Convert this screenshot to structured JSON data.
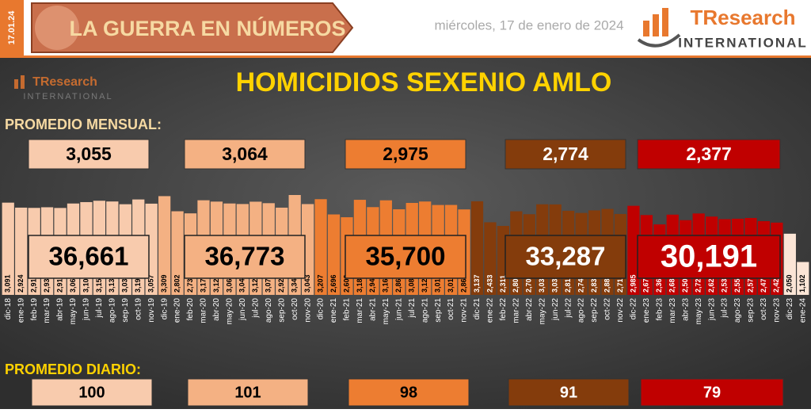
{
  "header": {
    "date_tag": "17.01.24",
    "banner": "LA GUERRA EN NÚMEROS",
    "date": "miércoles, 17 de enero de 2024",
    "logo_name": "TResearch",
    "logo_sub": "INTERNATIONAL"
  },
  "chart_data": {
    "type": "bar",
    "title": "HOMICIDIOS SEXENIO AMLO",
    "x": [
      "dic-18",
      "ene-19",
      "feb-19",
      "mar-19",
      "abr-19",
      "may-19",
      "jun-19",
      "jul-19",
      "ago-19",
      "sep-19",
      "oct-19",
      "nov-19",
      "dic-19",
      "ene-20",
      "feb-20",
      "mar-20",
      "abr-20",
      "may-20",
      "jun-20",
      "jul-20",
      "ago-20",
      "sep-20",
      "oct-20",
      "nov-20",
      "dic-20",
      "ene-21",
      "feb-21",
      "mar-21",
      "abr-21",
      "may-21",
      "jun-21",
      "jul-21",
      "ago-21",
      "sep-21",
      "oct-21",
      "nov-21",
      "dic-21",
      "ene-22",
      "feb-22",
      "mar-22",
      "abr-22",
      "may-22",
      "jun-22",
      "jul-22",
      "ago-22",
      "sep-22",
      "oct-22",
      "nov-22",
      "dic-22",
      "ene-23",
      "feb-23",
      "mar-23",
      "abr-23",
      "may-23",
      "jun-23",
      "jul-23",
      "ago-23",
      "sep-23",
      "oct-23",
      "nov-23",
      "dic-23",
      "ene-24"
    ],
    "values": [
      3091,
      2924,
      2915,
      2936,
      2913,
      3062,
      3109,
      3155,
      3130,
      3038,
      3198,
      3057,
      3309,
      2802,
      2732,
      3171,
      3126,
      3063,
      3045,
      3123,
      3073,
      2923,
      3347,
      3043,
      3207,
      2696,
      2602,
      3186,
      2941,
      3169,
      2868,
      3082,
      3129,
      3012,
      3014,
      2864,
      3137,
      2433,
      2311,
      2801,
      2703,
      3036,
      3032,
      2818,
      2746,
      2831,
      2880,
      2711,
      2985,
      2675,
      2362,
      2689,
      2504,
      2728,
      2624,
      2538,
      2552,
      2577,
      2470,
      2422,
      2050,
      1102
    ],
    "value_labels": [
      "3,091",
      "2,924",
      "2,915",
      "2,936",
      "2,913",
      "3,062",
      "3,109",
      "3,155",
      "3,130",
      "3,038",
      "3,198",
      "3,057",
      "3,309",
      "2,802",
      "2,732",
      "3,171",
      "3,126",
      "3,063",
      "3,045",
      "3,123",
      "3,073",
      "2,923",
      "3,347",
      "3,043",
      "3,207",
      "2,696",
      "2,602",
      "3,186",
      "2,941",
      "3,169",
      "2,868",
      "3,082",
      "3,129",
      "3,012",
      "3,014",
      "2,864",
      "3,137",
      "2,433",
      "2,311",
      "2,801",
      "2,703",
      "3,036",
      "3,032",
      "2,818",
      "2,746",
      "2,831",
      "2,880",
      "2,711",
      "2,985",
      "2,675",
      "2,362",
      "2,689",
      "2,504",
      "2,728",
      "2,624",
      "2,538",
      "2,552",
      "2,577",
      "2,470",
      "2,422",
      "2,050",
      "1,102"
    ],
    "colors": [
      "#f8cbad",
      "#f4b183",
      "#ed7d31",
      "#843c0c",
      "#c00000",
      "#fbe5d6"
    ],
    "period_totals": {
      "values": [
        36661,
        36773,
        35700,
        33287,
        30191
      ],
      "value_labels": [
        "36,661",
        "36,773",
        "35,700",
        "33,287",
        "30,191"
      ]
    },
    "monthly_average": {
      "title": "PROMEDIO MENSUAL:",
      "values": [
        3055,
        3064,
        2975,
        2774,
        2377
      ],
      "value_labels": [
        "3,055",
        "3,064",
        "2,975",
        "2,774",
        "2,377"
      ]
    },
    "daily_average": {
      "title": "PROMEDIO DIARIO:",
      "values": [
        100,
        101,
        98,
        91,
        79
      ]
    }
  }
}
